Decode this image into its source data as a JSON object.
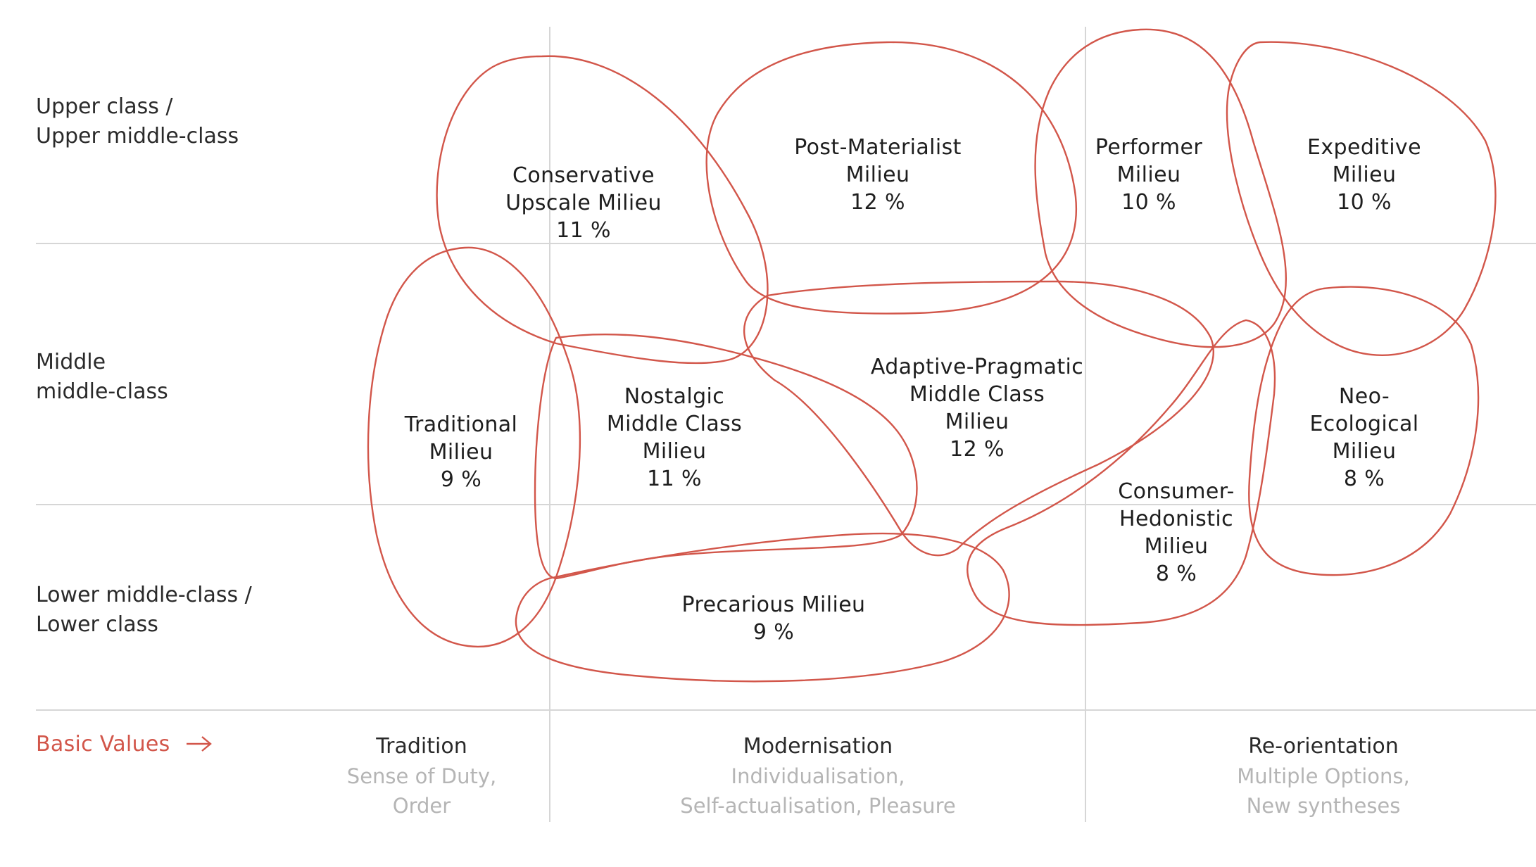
{
  "colors": {
    "blob": "#d2564a",
    "grid": "#d6d6d6",
    "accent": "#d2564a",
    "subtitle": "#b5b5b5"
  },
  "rows": {
    "upper": [
      "Upper class /",
      "Upper middle-class"
    ],
    "middle": [
      "Middle",
      "middle-class"
    ],
    "lower": [
      "Lower middle-class /",
      "Lower class"
    ]
  },
  "milieus": {
    "conservative_upscale": {
      "lines": [
        "Conservative",
        "Upscale Milieu"
      ],
      "share": "11 %"
    },
    "post_materialist": {
      "lines": [
        "Post-Materialist",
        "Milieu"
      ],
      "share": "12 %"
    },
    "performer": {
      "lines": [
        "Performer",
        "Milieu"
      ],
      "share": "10 %"
    },
    "expeditive": {
      "lines": [
        "Expeditive",
        "Milieu"
      ],
      "share": "10 %"
    },
    "traditional": {
      "lines": [
        "Traditional",
        "Milieu"
      ],
      "share": "9 %"
    },
    "nostalgic": {
      "lines": [
        "Nostalgic",
        "Middle Class",
        "Milieu"
      ],
      "share": "11 %"
    },
    "adaptive_pragmatic": {
      "lines": [
        "Adaptive-Pragmatic",
        "Middle Class",
        "Milieu"
      ],
      "share": "12 %"
    },
    "neo_ecological": {
      "lines": [
        "Neo-",
        "Ecological",
        "Milieu"
      ],
      "share": "8 %"
    },
    "consumer_hedonistic": {
      "lines": [
        "Consumer-",
        "Hedonistic",
        "Milieu"
      ],
      "share": "8 %"
    },
    "precarious": {
      "lines": [
        "Precarious Milieu"
      ],
      "share": "9 %"
    }
  },
  "basic_values": {
    "label": "Basic Values",
    "arrow_icon": "arrow-right-icon"
  },
  "columns": {
    "tradition": {
      "title": "Tradition",
      "sub": [
        "Sense of Duty,",
        "Order"
      ]
    },
    "modernisation": {
      "title": "Modernisation",
      "sub": [
        "Individualisation,",
        "Self-actualisation, Pleasure"
      ]
    },
    "reorientation": {
      "title": "Re-orientation",
      "sub": [
        "Multiple Options,",
        "New syntheses"
      ]
    }
  }
}
